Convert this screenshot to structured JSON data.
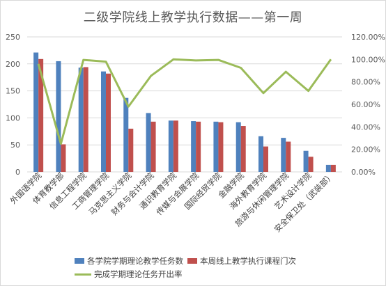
{
  "chart_data": {
    "type": "bar",
    "title": "二级学院线上教学执行数据——第一周",
    "categories": [
      "外国语学院",
      "体育教学部",
      "信息工程学院",
      "工商管理学院",
      "马克思主义学院",
      "财务与会计学院",
      "通识教育学院",
      "传媒与会展学院",
      "国际经贸学院",
      "金融学院",
      "海外教育学院",
      "旅游与休闲管理学院",
      "艺术设计学院",
      "安全保卫处（武装部）"
    ],
    "series": [
      {
        "name": "各学院学期理论教学任务数",
        "axis": "left",
        "kind": "bar",
        "color": "#4f81bd",
        "values": [
          221,
          205,
          193,
          186,
          137,
          109,
          95,
          94,
          93,
          92,
          66,
          63,
          39,
          13
        ]
      },
      {
        "name": "本周线上教学执行课程门次",
        "axis": "left",
        "kind": "bar",
        "color": "#c0504d",
        "values": [
          209,
          51,
          194,
          182,
          80,
          93,
          95,
          93,
          92,
          85,
          47,
          56,
          28,
          13
        ]
      },
      {
        "name": "完成学期理论任务开出率",
        "axis": "right",
        "kind": "line",
        "color": "#9bbb59",
        "values": [
          0.96,
          0.25,
          0.995,
          0.98,
          0.58,
          0.853,
          1.0,
          0.99,
          0.995,
          0.925,
          0.7,
          0.89,
          0.72,
          1.0
        ]
      }
    ],
    "ylim_left": [
      0,
      250
    ],
    "yticks_left": [
      "0",
      "50",
      "100",
      "150",
      "200",
      "250"
    ],
    "ylim_right": [
      0,
      1.2
    ],
    "yticks_right": [
      "0.00%",
      "20.00%",
      "40.00%",
      "60.00%",
      "80.00%",
      "100.00%",
      "120.00%"
    ],
    "grid": true,
    "legend_position": "bottom"
  }
}
